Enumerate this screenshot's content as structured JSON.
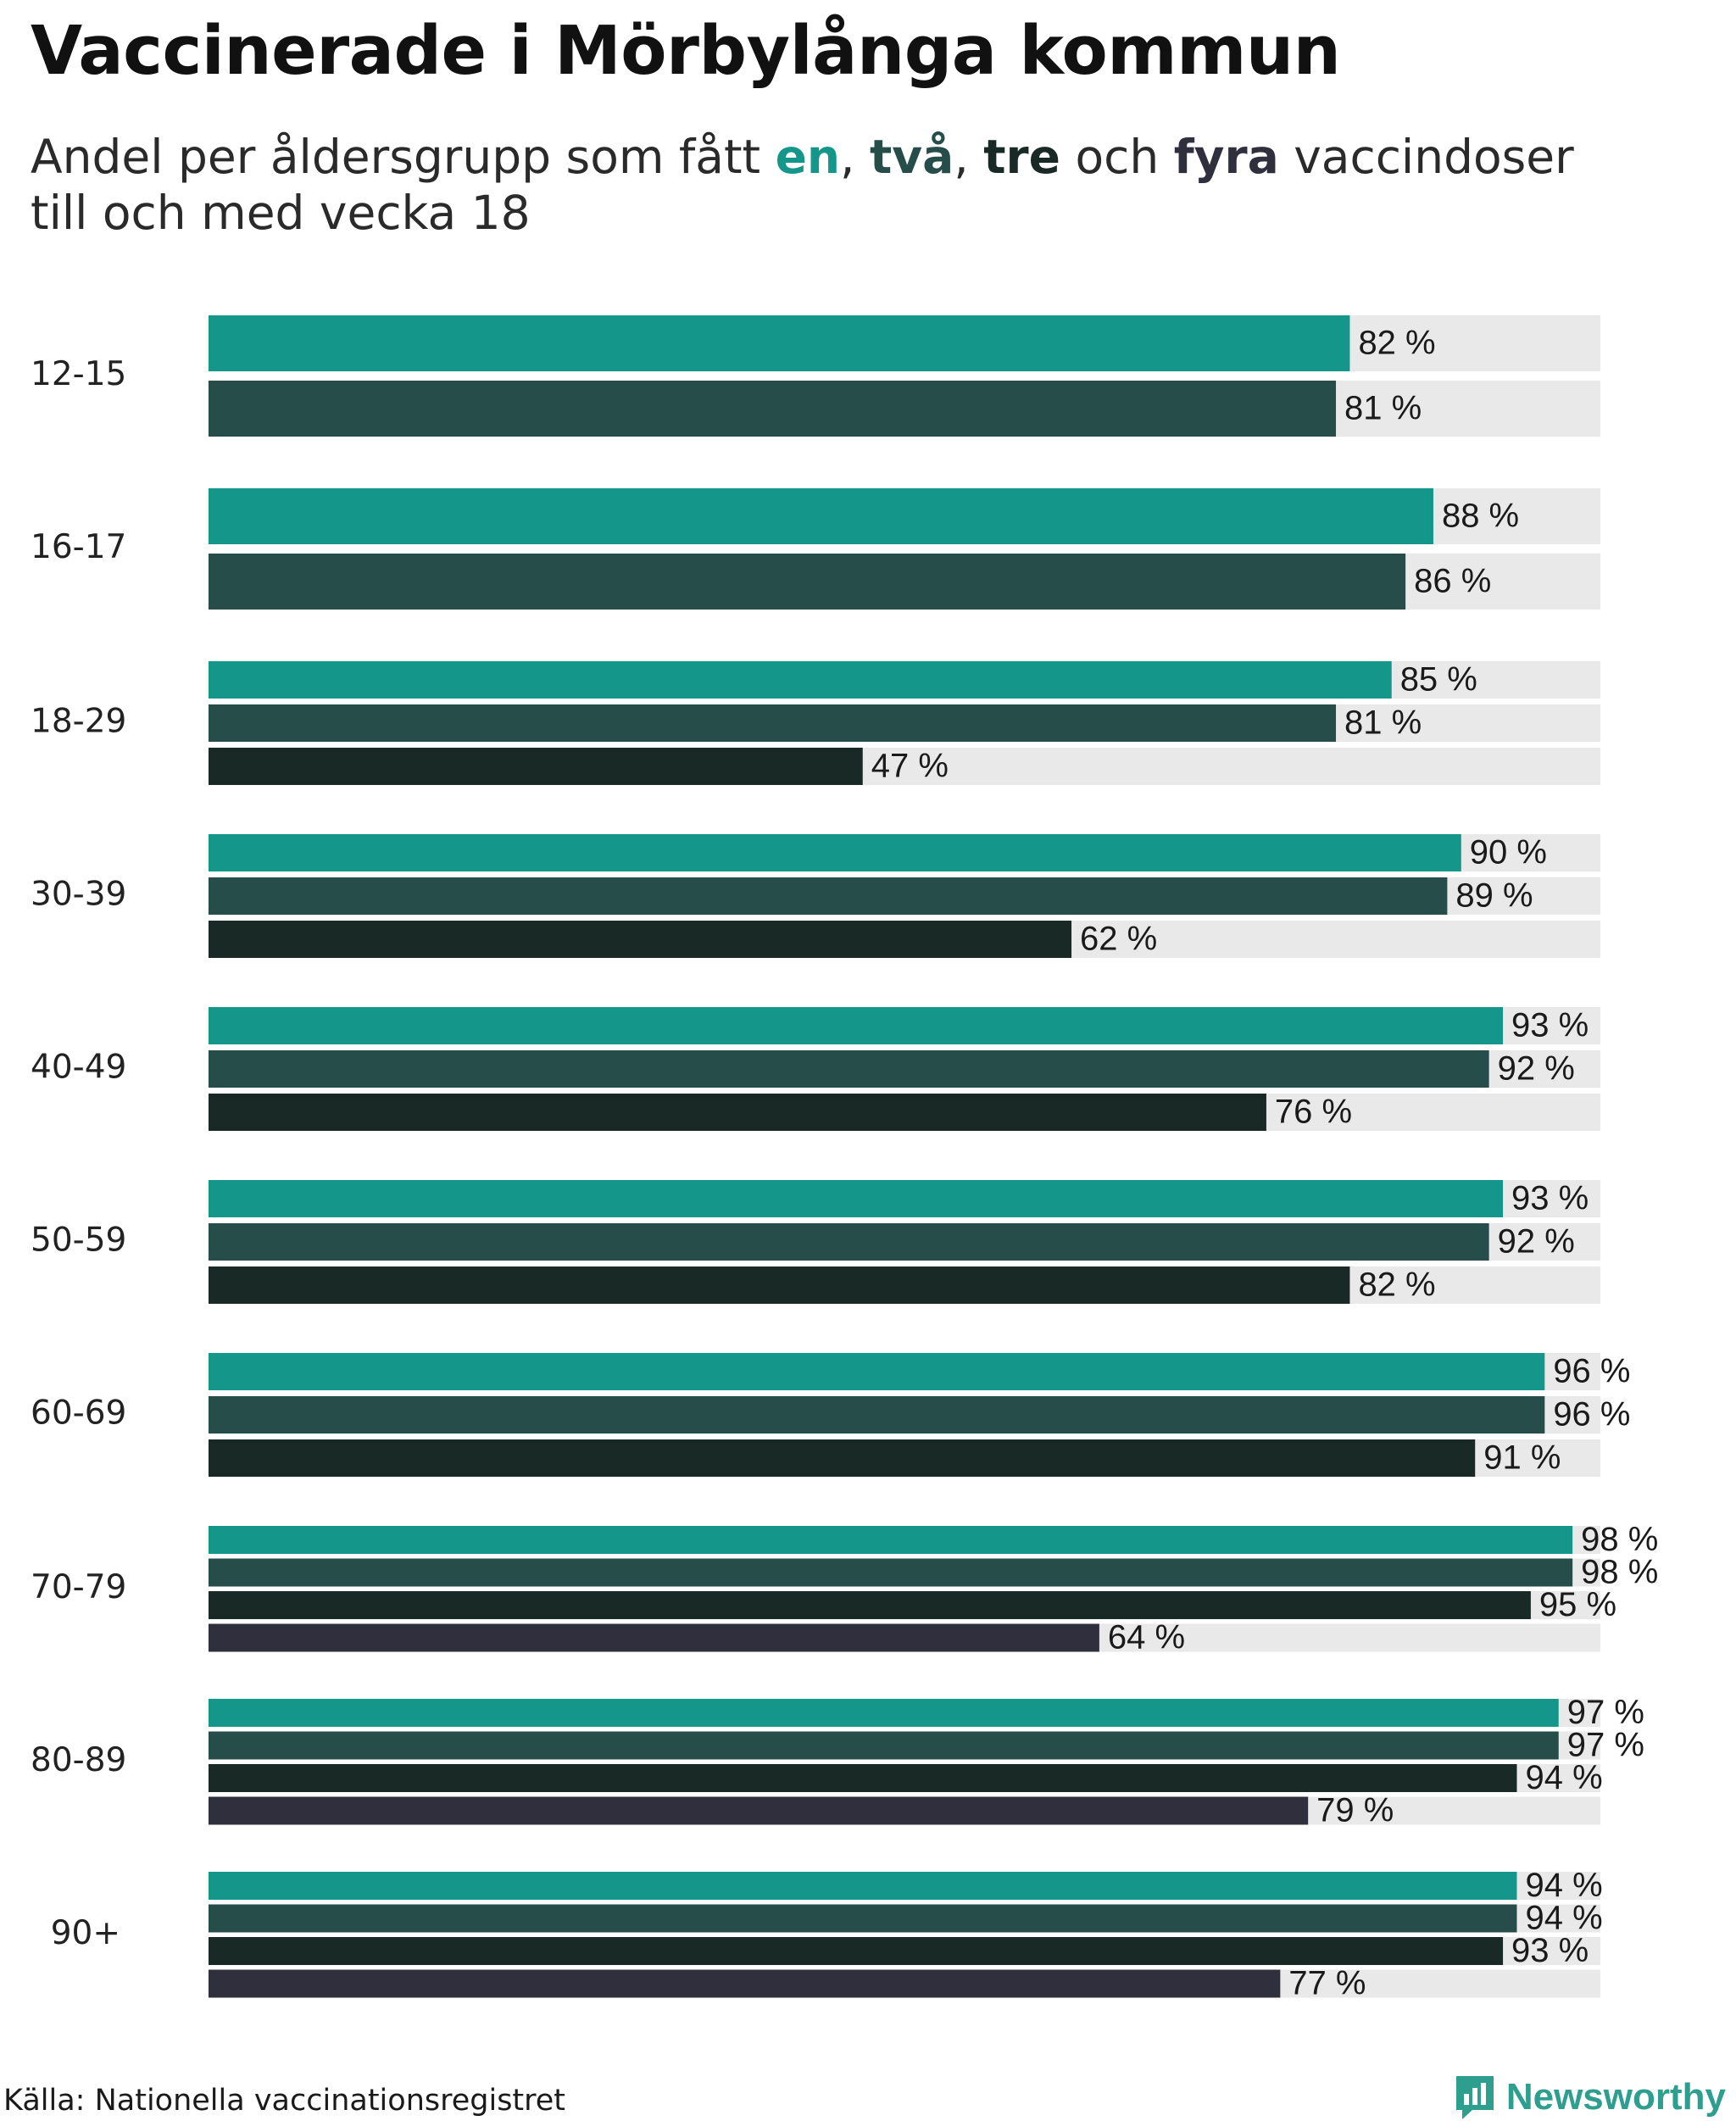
{
  "title": "Vaccinerade i Mörbylånga kommun",
  "subtitle": {
    "prefix": "Andel per åldersgrupp som fått ",
    "dose1": "en",
    "sep1": ", ",
    "dose2": "två",
    "sep2": ", ",
    "dose3": "tre",
    "mid": " och ",
    "dose4": "fyra",
    "suffix": " vaccindoser",
    "line2": "till och med vecka 18"
  },
  "colors": {
    "dose1": "#14978a",
    "dose2": "#264d4a",
    "dose3": "#182926",
    "dose4": "#2f2f3d",
    "track": "#e9e9e9",
    "logo": "#2e9e8e"
  },
  "chart_data": {
    "type": "bar",
    "orientation": "horizontal",
    "title": "Vaccinerade i Mörbylånga kommun",
    "xlim": [
      0,
      100
    ],
    "unit": "%",
    "series_names": [
      "en",
      "två",
      "tre",
      "fyra"
    ],
    "groups": [
      {
        "label": "12-15",
        "values": [
          82,
          81
        ]
      },
      {
        "label": "16-17",
        "values": [
          88,
          86
        ]
      },
      {
        "label": "18-29",
        "values": [
          85,
          81,
          47
        ]
      },
      {
        "label": "30-39",
        "values": [
          90,
          89,
          62
        ]
      },
      {
        "label": "40-49",
        "values": [
          93,
          92,
          76
        ]
      },
      {
        "label": "50-59",
        "values": [
          93,
          92,
          82
        ]
      },
      {
        "label": "60-69",
        "values": [
          96,
          96,
          91
        ]
      },
      {
        "label": "70-79",
        "values": [
          98,
          98,
          95,
          64
        ]
      },
      {
        "label": "80-89",
        "values": [
          97,
          97,
          94,
          79
        ]
      },
      {
        "label": "90+",
        "values": [
          94,
          94,
          93,
          77
        ]
      }
    ]
  },
  "footer": {
    "source": "Källa: Nationella vaccinationsregistret",
    "brand": "Newsworthy"
  }
}
